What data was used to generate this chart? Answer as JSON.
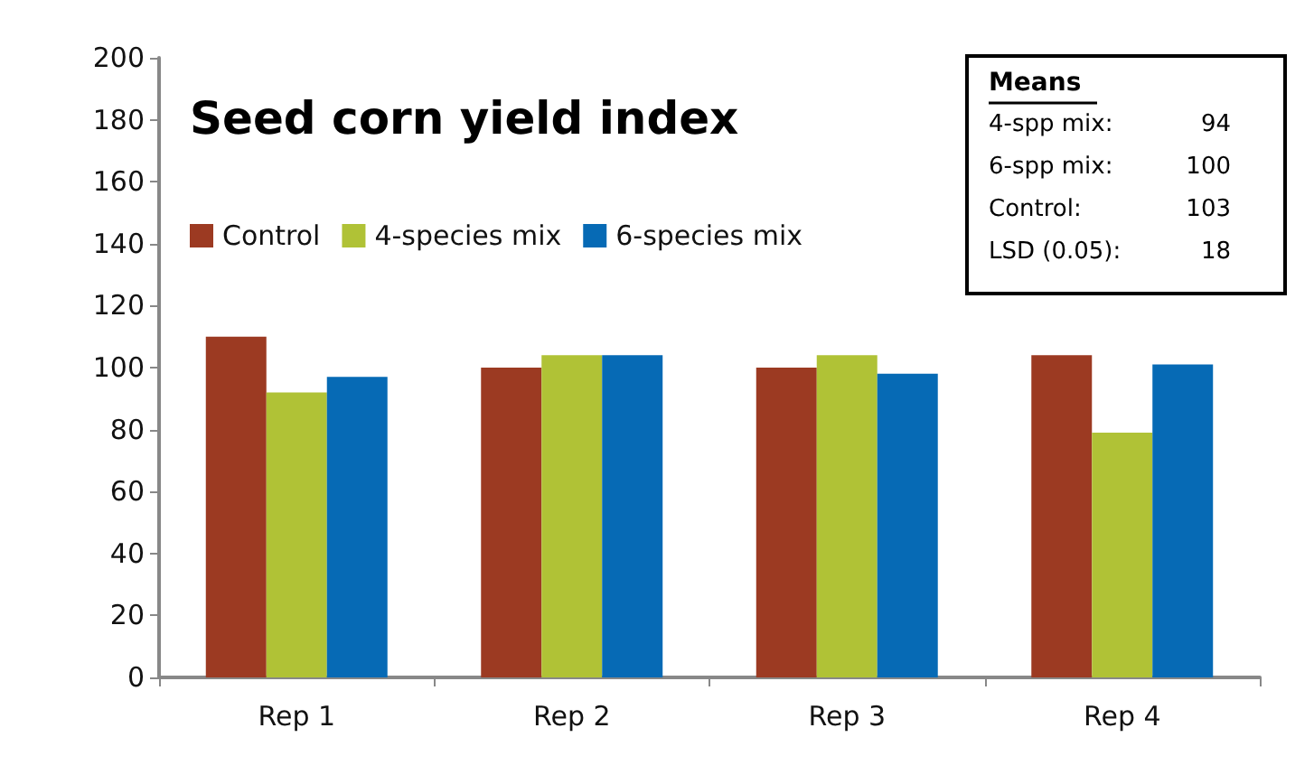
{
  "chart_data": {
    "type": "bar",
    "title": "Seed corn yield index",
    "categories": [
      "Rep 1",
      "Rep 2",
      "Rep 3",
      "Rep 4"
    ],
    "series": [
      {
        "name": "Control",
        "color": "#9c3a22",
        "values": [
          110,
          100,
          100,
          104
        ]
      },
      {
        "name": "4-species mix",
        "color": "#b0c236",
        "values": [
          92,
          104,
          104,
          79
        ]
      },
      {
        "name": "6-species mix",
        "color": "#066ab5",
        "values": [
          97,
          104,
          98,
          101
        ]
      }
    ],
    "ylim": [
      0,
      200
    ],
    "yticks": [
      0,
      20,
      40,
      60,
      80,
      100,
      120,
      140,
      160,
      180,
      200
    ],
    "grid": false,
    "legend": "top left",
    "annotations": [
      "Means",
      "4-spp mix: 94",
      "6-spp mix: 100",
      "Control: 103",
      "LSD (0.05): 18"
    ]
  }
}
